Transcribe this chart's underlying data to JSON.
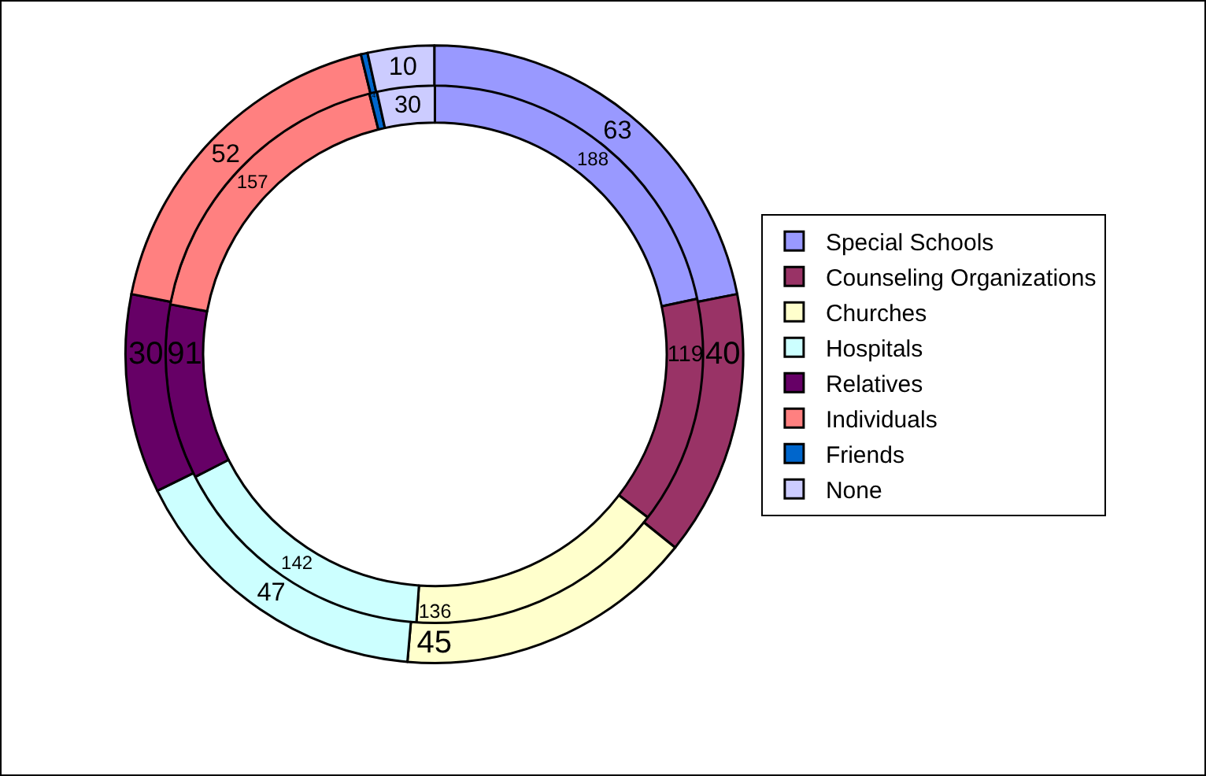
{
  "chart_data": {
    "type": "donut",
    "categories": [
      "Special Schools",
      "Counseling Organizations",
      "Churches",
      "Hospitals",
      "Relatives",
      "Individuals",
      "Friends",
      "None"
    ],
    "colors": [
      "#9999ff",
      "#993366",
      "#ffffcc",
      "#ccffff",
      "#660066",
      "#ff8080",
      "#0066cc",
      "#ccccff"
    ],
    "series": [
      {
        "values": [
          188,
          119,
          136,
          142,
          91,
          157,
          4,
          30
        ],
        "value_labels": [
          "188",
          "119",
          "136",
          "142",
          "91",
          "157",
          "4",
          "30"
        ]
      },
      {
        "values": [
          63,
          40,
          45,
          47,
          30,
          52,
          1,
          10
        ],
        "value_labels": [
          "63",
          "40",
          "45",
          "47",
          "30",
          "52",
          null,
          "10"
        ]
      }
    ],
    "legend": "right"
  }
}
